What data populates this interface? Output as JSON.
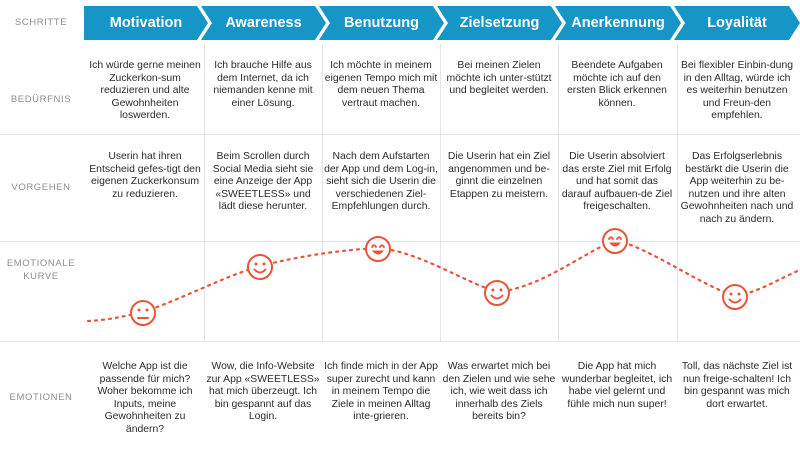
{
  "row_labels": {
    "schritte": "SCHRITTE",
    "beduerfnis": "BEDÜRFNIS",
    "vorgehen": "VORGEHEN",
    "emotionale_kurve_1": "EMOTIONALE",
    "emotionale_kurve_2": "KURVE",
    "emotionen": "EMOTIONEN"
  },
  "steps": [
    {
      "title": "Motivation",
      "beduerfnis": "Ich würde gerne meinen Zuckerkon-sum reduzieren und alte Gewohnheiten loswerden.",
      "vorgehen": "Userin hat ihren Entscheid gefes-tigt den eigenen Zuckerkonsum zu reduzieren.",
      "emotionen": "Welche App ist die passende für mich? Woher bekomme ich Inputs, meine Gewohnheiten zu ändern?",
      "mood": "neutral"
    },
    {
      "title": "Awareness",
      "beduerfnis": "Ich brauche Hilfe aus dem Internet, da ich niemanden kenne mit einer Lösung.",
      "vorgehen": "Beim Scrollen durch Social Media sieht sie eine Anzeige der App «SWEETLESS» und lädt diese herunter.",
      "emotionen": "Wow, die Info-Website zur App «SWEETLESS» hat mich überzeugt. Ich bin gespannt auf das Login.",
      "mood": "happy"
    },
    {
      "title": "Benutzung",
      "beduerfnis": "Ich möchte in meinem eigenen Tempo mich mit dem neuen Thema vertraut machen.",
      "vorgehen": "Nach dem Aufstarten der App und dem Log-in, sieht sich die Userin die verschiedenen Ziel-Empfehlungen durch.",
      "emotionen": "Ich finde mich in der App super zurecht und kann in meinem Tempo die Ziele in meinen Alltag inte-grieren.",
      "mood": "very-happy"
    },
    {
      "title": "Zielsetzung",
      "beduerfnis": "Bei meinen Zielen möchte ich unter-stützt und begleitet werden.",
      "vorgehen": "Die Userin hat ein Ziel angenommen und be-ginnt die einzelnen Etappen zu meistern.",
      "emotionen": "Was erwartet mich bei den Zielen und wie sehe ich, wie weit dass ich innerhalb des Ziels bereits bin?",
      "mood": "happy"
    },
    {
      "title": "Anerkennung",
      "beduerfnis": "Beendete Aufgaben möchte ich auf den ersten Blick erkennen können.",
      "vorgehen": "Die Userin absolviert das erste Ziel mit Erfolg und hat somit das darauf aufbauen-de Ziel freigeschalten.",
      "emotionen": "Die App hat mich wunderbar begleitet, ich habe viel gelernt und fühle mich nun super!",
      "mood": "very-happy"
    },
    {
      "title": "Loyalität",
      "beduerfnis": "Bei flexibler Einbin-dung in den Alltag, würde ich es weiterhin benutzen und Freun-den empfehlen.",
      "vorgehen": "Das Erfolgserlebnis bestärkt die Userin die App weiterhin zu be-nutzen und ihre alten Gewohnheiten nach und nach zu ändern.",
      "emotionen": "Toll, das nächste Ziel ist nun freige-schalten! Ich bin gespannt was mich dort erwartet.",
      "mood": "happy"
    }
  ],
  "colors": {
    "step_bg": "#1596c6",
    "curve": "#e8543a",
    "grid": "#e2e4e7",
    "label": "#8a8f96"
  }
}
